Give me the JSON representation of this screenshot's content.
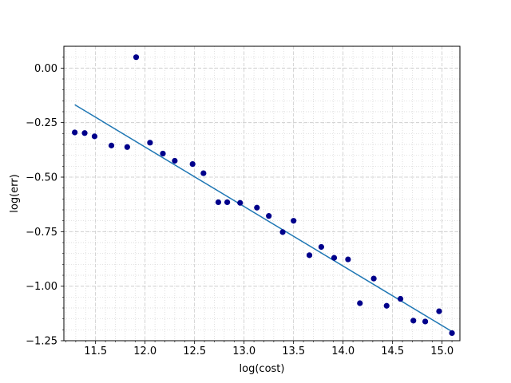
{
  "chart_data": {
    "type": "scatter",
    "title": "",
    "xlabel": "log(cost)",
    "ylabel": "log(err)",
    "xlim": [
      11.18,
      15.18
    ],
    "ylim": [
      -1.25,
      0.1
    ],
    "grid": true,
    "x_ticks": [
      11.5,
      12.0,
      12.5,
      13.0,
      13.5,
      14.0,
      14.5,
      15.0
    ],
    "x_tick_labels": [
      "11.5",
      "12.0",
      "12.5",
      "13.0",
      "13.5",
      "14.0",
      "14.5",
      "15.0"
    ],
    "y_ticks": [
      0.0,
      -0.25,
      -0.5,
      -0.75,
      -1.0,
      -1.25
    ],
    "y_tick_labels": [
      "0.00",
      "−0.25",
      "−0.50",
      "−0.75",
      "−1.00",
      "−1.25"
    ],
    "series": [
      {
        "marker_color": "#00008b",
        "points": [
          {
            "x": 11.29,
            "y": -0.295
          },
          {
            "x": 11.39,
            "y": -0.298
          },
          {
            "x": 11.49,
            "y": -0.313
          },
          {
            "x": 11.66,
            "y": -0.355
          },
          {
            "x": 11.82,
            "y": -0.362
          },
          {
            "x": 11.91,
            "y": 0.05
          },
          {
            "x": 12.05,
            "y": -0.342
          },
          {
            "x": 12.18,
            "y": -0.392
          },
          {
            "x": 12.3,
            "y": -0.425
          },
          {
            "x": 12.48,
            "y": -0.44
          },
          {
            "x": 12.59,
            "y": -0.482
          },
          {
            "x": 12.74,
            "y": -0.615
          },
          {
            "x": 12.83,
            "y": -0.615
          },
          {
            "x": 12.96,
            "y": -0.618
          },
          {
            "x": 13.13,
            "y": -0.64
          },
          {
            "x": 13.25,
            "y": -0.678
          },
          {
            "x": 13.39,
            "y": -0.752
          },
          {
            "x": 13.5,
            "y": -0.7
          },
          {
            "x": 13.66,
            "y": -0.858
          },
          {
            "x": 13.78,
            "y": -0.82
          },
          {
            "x": 13.91,
            "y": -0.87
          },
          {
            "x": 14.05,
            "y": -0.877
          },
          {
            "x": 14.17,
            "y": -1.078
          },
          {
            "x": 14.31,
            "y": -0.965
          },
          {
            "x": 14.44,
            "y": -1.09
          },
          {
            "x": 14.58,
            "y": -1.058
          },
          {
            "x": 14.71,
            "y": -1.158
          },
          {
            "x": 14.83,
            "y": -1.162
          },
          {
            "x": 14.97,
            "y": -1.115
          },
          {
            "x": 15.1,
            "y": -1.215
          }
        ]
      },
      {
        "line_color": "#1f77b4",
        "fit_line": [
          {
            "x": 11.29,
            "y": -0.168
          },
          {
            "x": 15.1,
            "y": -1.208
          }
        ]
      }
    ]
  }
}
